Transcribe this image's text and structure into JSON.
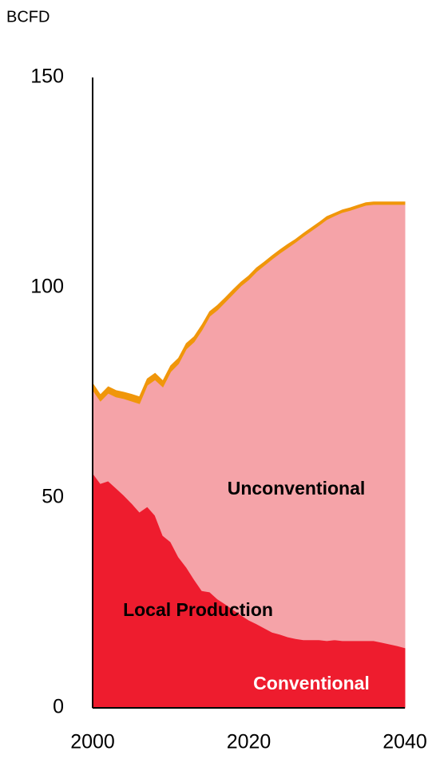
{
  "chart_data": {
    "type": "stacked_area",
    "y_unit_label": "BCFD",
    "annotations": [
      "Local Production"
    ],
    "x": [
      2000,
      2001,
      2002,
      2003,
      2004,
      2005,
      2006,
      2007,
      2008,
      2009,
      2010,
      2011,
      2012,
      2013,
      2014,
      2015,
      2016,
      2017,
      2018,
      2019,
      2020,
      2021,
      2022,
      2023,
      2024,
      2025,
      2026,
      2027,
      2028,
      2029,
      2030,
      2031,
      2032,
      2033,
      2034,
      2035,
      2036,
      2037,
      2038,
      2039,
      2040
    ],
    "series": [
      {
        "name": "Conventional",
        "color": "#ee1c2e",
        "values": [
          55.9,
          53.4,
          54,
          52.3,
          50.6,
          48.7,
          46.6,
          47.9,
          45.8,
          41,
          39.5,
          35.9,
          33.5,
          30.6,
          27.9,
          27.6,
          25.9,
          24.7,
          23.4,
          22.1,
          20.9,
          20,
          19,
          18,
          17.5,
          16.9,
          16.5,
          16.2,
          16.2,
          16.2,
          16,
          16.2,
          16,
          16,
          16,
          16,
          16,
          15.6,
          15.2,
          14.8,
          14.3
        ]
      },
      {
        "name": "Unconventional",
        "color": "#f5a3a8",
        "values": [
          19.8,
          19.6,
          20.9,
          21.7,
          23,
          24.3,
          25.8,
          28.9,
          32.3,
          35.4,
          40.5,
          46,
          51.9,
          56.5,
          62,
          65.6,
          68.8,
          71.9,
          75.1,
          78.3,
          81,
          83.8,
          86.3,
          88.8,
          90.7,
          92.6,
          94.3,
          96,
          97.3,
          98.6,
          100.2,
          100.9,
          101.9,
          102.4,
          103,
          103.6,
          103.8,
          104.2,
          104.6,
          105,
          105.5
        ]
      },
      {
        "color": "#f0960a",
        "values": [
          1.5,
          1.5,
          1.5,
          1.5,
          1.5,
          1.6,
          1.6,
          1.5,
          1.5,
          1.4,
          1.4,
          1.3,
          1.3,
          1.2,
          1.2,
          1.1,
          1.1,
          1,
          1,
          0.9,
          0.9,
          0.9,
          0.8,
          0.8,
          0.8,
          0.8,
          0.7,
          0.7,
          0.7,
          0.7,
          0.7,
          0.6,
          0.6,
          0.6,
          0.6,
          0.6,
          0.6,
          0.6,
          0.6,
          0.6,
          0.6
        ]
      }
    ],
    "xlim": [
      2000,
      2040
    ],
    "xticks": [
      2000,
      2020,
      2040
    ],
    "ylim": [
      0,
      150
    ],
    "yticks": [
      0,
      50,
      100,
      150
    ],
    "grid": false
  }
}
